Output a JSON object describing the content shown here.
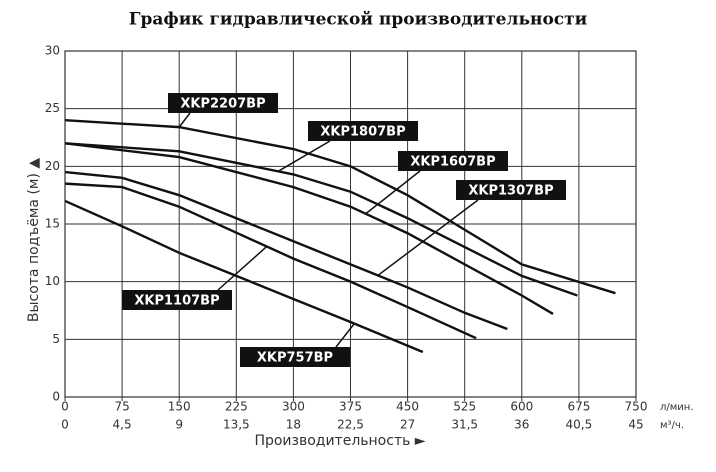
{
  "chart_data": {
    "type": "line",
    "title": "График гидравлической производительности",
    "ylabel": "Высота подъёма (м) ▲",
    "xlabel": "Производительность ►",
    "x_unit": "л/мин.",
    "x2_unit": "м³/ч.",
    "xlim": [
      0,
      750
    ],
    "xticks": [
      0,
      75,
      150,
      225,
      300,
      375,
      450,
      525,
      600,
      675,
      750
    ],
    "x2lim": [
      0,
      45
    ],
    "x2ticks": [
      0,
      {
        "value": 4.5,
        "label": "4,5"
      },
      9,
      {
        "value": 13.5,
        "label": "13,5"
      },
      18,
      {
        "value": 22.5,
        "label": "22,5"
      },
      27,
      {
        "value": 31.5,
        "label": "31,5"
      },
      36,
      {
        "value": 40.5,
        "label": "40,5"
      },
      45
    ],
    "ylim": [
      0,
      30
    ],
    "yticks": [
      0,
      5,
      10,
      15,
      20,
      25,
      30
    ],
    "grid": true,
    "series": [
      {
        "name": "XKP2207BP",
        "color": "#111111",
        "x": [
          0,
          150,
          300,
          375,
          450,
          525,
          600,
          723
        ],
        "values": [
          24,
          23.4,
          21.5,
          20,
          17.5,
          14.5,
          11.5,
          9
        ]
      },
      {
        "name": "XKP1807BP",
        "color": "#111111",
        "x": [
          0,
          150,
          300,
          375,
          450,
          525,
          600,
          673
        ],
        "values": [
          22,
          21.3,
          19.3,
          17.8,
          15.5,
          13,
          10.5,
          8.8
        ]
      },
      {
        "name": "XKP1607BP",
        "color": "#111111",
        "x": [
          0,
          150,
          300,
          375,
          450,
          525,
          600,
          641
        ],
        "values": [
          22,
          20.8,
          18.2,
          16.5,
          14.2,
          11.5,
          8.8,
          7.2
        ]
      },
      {
        "name": "XKP1307BP",
        "color": "#111111",
        "x": [
          0,
          75,
          150,
          300,
          375,
          450,
          525,
          581
        ],
        "values": [
          19.5,
          19,
          17.5,
          13.5,
          11.5,
          9.5,
          7.3,
          5.9
        ]
      },
      {
        "name": "XKP1107BP",
        "color": "#111111",
        "x": [
          0,
          75,
          150,
          300,
          375,
          450,
          540
        ],
        "values": [
          18.5,
          18.2,
          16.5,
          12,
          10,
          7.8,
          5.1
        ]
      },
      {
        "name": "XKP757BP",
        "color": "#111111",
        "x": [
          0,
          75,
          150,
          225,
          300,
          375,
          470
        ],
        "values": [
          17,
          14.8,
          12.5,
          10.5,
          8.5,
          6.5,
          3.9
        ]
      }
    ]
  }
}
